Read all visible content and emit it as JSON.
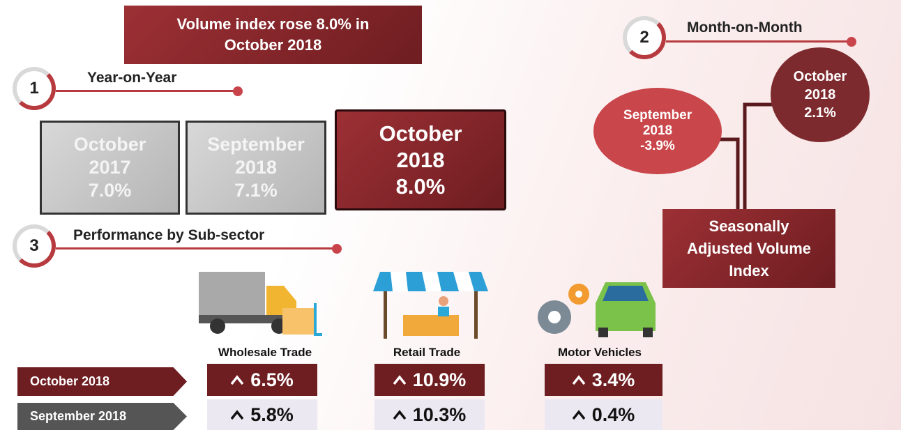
{
  "headline": [
    "Volume index rose 8.0% in",
    "October  2018"
  ],
  "year_on_year": {
    "number": "1",
    "title": "Year-on-Year",
    "boxes": [
      [
        "October",
        "2017",
        "7.0%"
      ],
      [
        "September",
        "2018",
        "7.1%"
      ],
      [
        "October",
        "2018",
        "8.0%"
      ]
    ]
  },
  "month_on_month": {
    "number": "2",
    "title": "Month-on-Month",
    "bubbles": [
      [
        "September",
        "2018",
        "-3.9%"
      ],
      [
        "October",
        "2018",
        "2.1%"
      ]
    ],
    "index_label": [
      "Seasonally",
      "Adjusted Volume",
      "Index"
    ]
  },
  "sub_sector": {
    "number": "3",
    "title": "Performance by Sub-sector",
    "sectors": [
      "Wholesale Trade",
      "Retail Trade",
      "Motor Vehicles"
    ],
    "rows": [
      {
        "label": "October 2018",
        "values": [
          "6.5%",
          "10.9%",
          "3.4%"
        ]
      },
      {
        "label": "September 2018",
        "values": [
          "5.8%",
          "10.3%",
          "0.4%"
        ]
      }
    ]
  }
}
